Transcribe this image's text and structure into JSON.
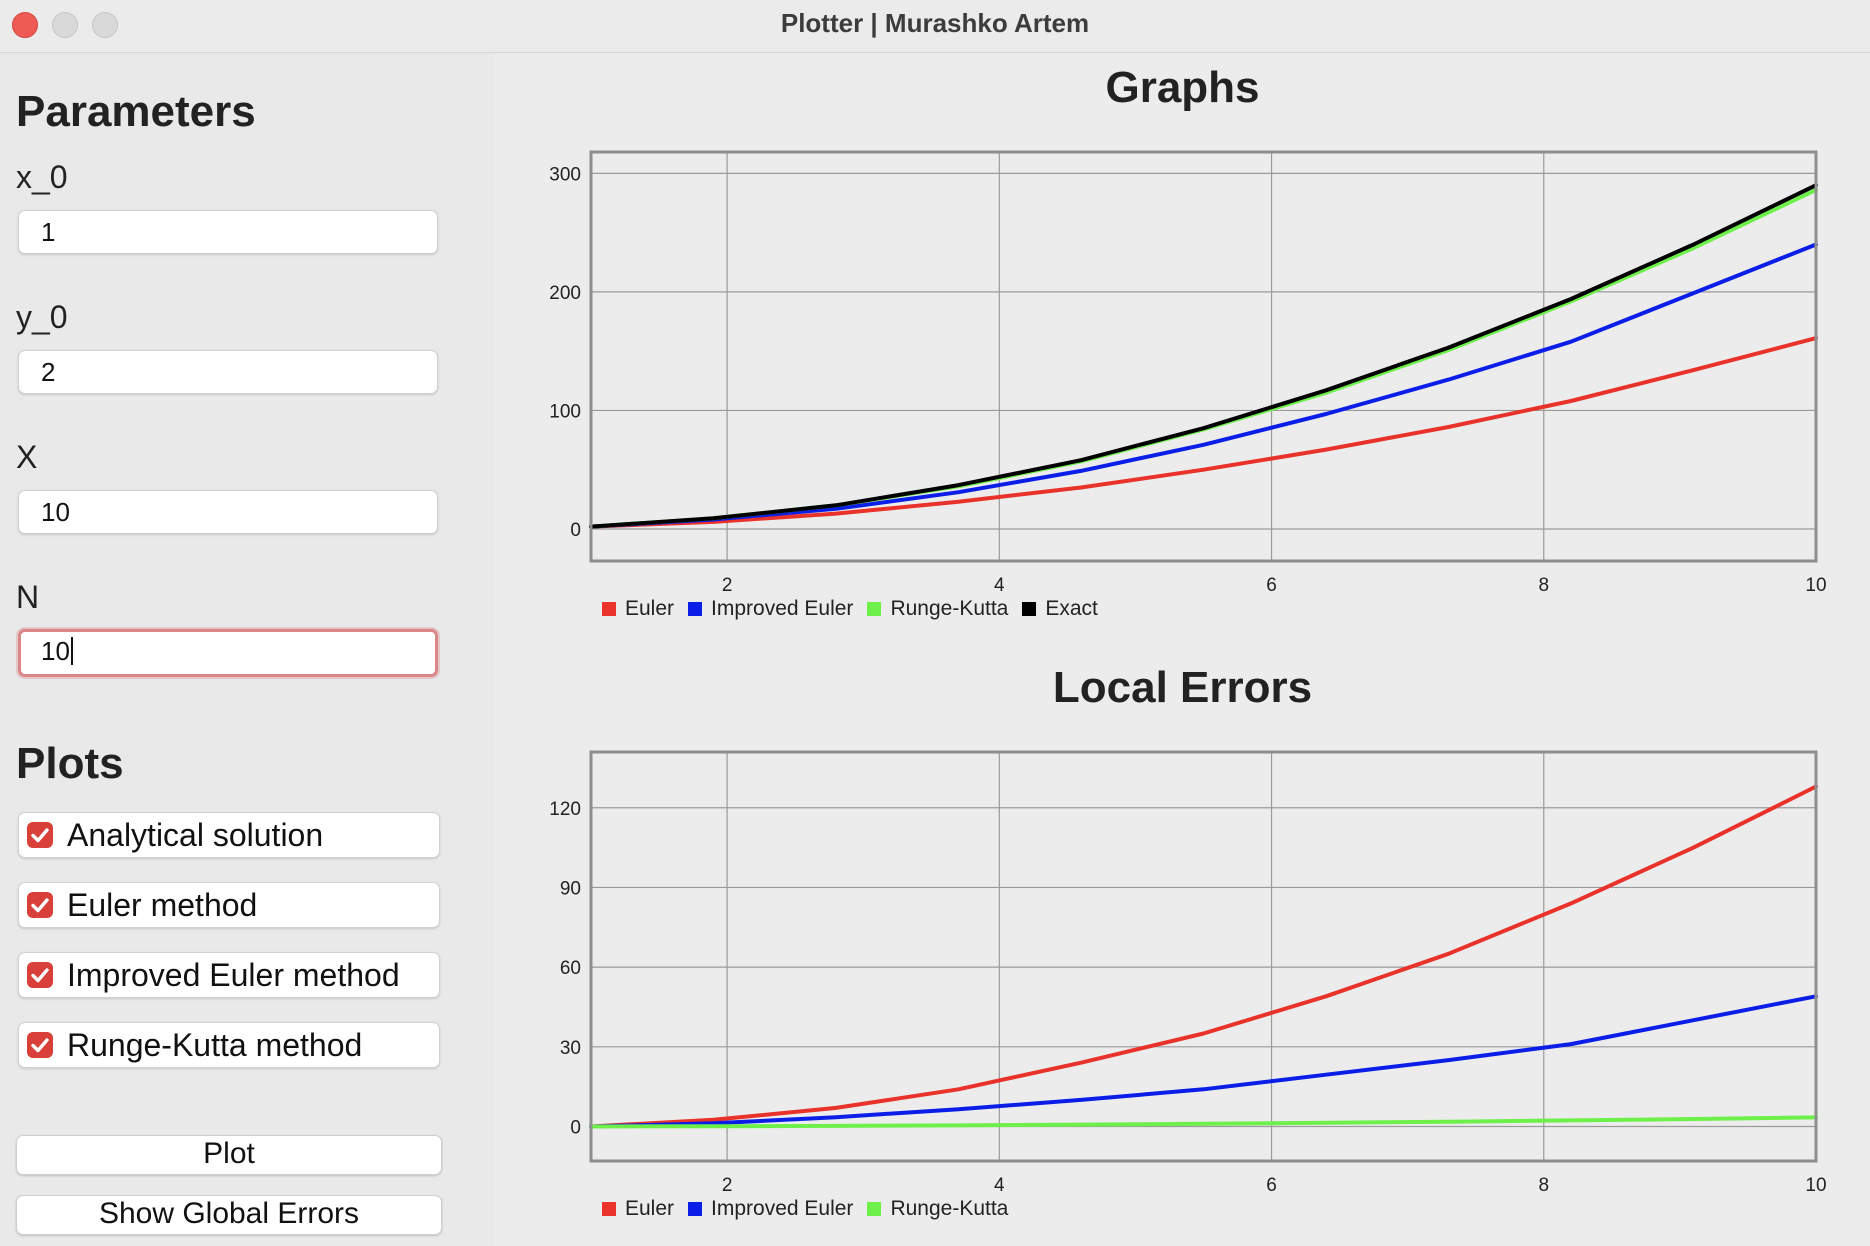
{
  "window": {
    "title": "Plotter | Murashko Artem"
  },
  "parameters": {
    "title": "Parameters",
    "fields": [
      {
        "label": "x_0",
        "value": "1"
      },
      {
        "label": "y_0",
        "value": "2"
      },
      {
        "label": "X",
        "value": "10"
      },
      {
        "label": "N",
        "value": "10"
      }
    ]
  },
  "plots": {
    "title": "Plots",
    "options": [
      {
        "label": "Analytical solution",
        "checked": true
      },
      {
        "label": "Euler method",
        "checked": true
      },
      {
        "label": "Improved Euler method",
        "checked": true
      },
      {
        "label": "Runge-Kutta method",
        "checked": true
      }
    ],
    "plot_button": "Plot",
    "global_errors_button": "Show Global Errors"
  },
  "colors": {
    "euler": "#e8322a",
    "improved_euler": "#0a1ee8",
    "runge_kutta": "#6ef04a",
    "exact": "#000000",
    "checkbox": "#d9403a"
  },
  "chart_data": [
    {
      "type": "line",
      "title": "Graphs",
      "xlim": [
        1,
        10
      ],
      "ylim": [
        -27,
        318
      ],
      "xticks": [
        2,
        4,
        6,
        8,
        10
      ],
      "yticks": [
        0,
        100,
        200,
        300
      ],
      "grid": true,
      "legend_position": "bottom-left",
      "x": [
        1,
        1.9,
        2.8,
        3.7,
        4.6,
        5.5,
        6.4,
        7.3,
        8.2,
        9.1,
        10
      ],
      "series": [
        {
          "name": "Euler",
          "color": "#e8322a",
          "values": [
            2,
            6,
            13,
            23,
            35,
            50,
            67,
            86,
            108,
            134,
            161
          ]
        },
        {
          "name": "Improved Euler",
          "color": "#0a1ee8",
          "values": [
            2,
            8,
            17,
            31,
            49,
            71,
            97,
            126,
            158,
            199,
            240
          ]
        },
        {
          "name": "Runge-Kutta",
          "color": "#6ef04a",
          "values": [
            2,
            9,
            20,
            36,
            57,
            84,
            115,
            151,
            192,
            237,
            286
          ]
        },
        {
          "name": "Exact",
          "color": "#000000",
          "values": [
            2,
            9,
            20,
            37,
            58,
            85,
            117,
            153,
            194,
            240,
            290
          ]
        }
      ]
    },
    {
      "type": "line",
      "title": "Local Errors",
      "xlim": [
        1,
        10
      ],
      "ylim": [
        -13,
        141
      ],
      "xticks": [
        2,
        4,
        6,
        8,
        10
      ],
      "yticks": [
        0,
        30,
        60,
        90,
        120
      ],
      "grid": true,
      "legend_position": "bottom-left",
      "x": [
        1,
        1.9,
        2.8,
        3.7,
        4.6,
        5.5,
        6.4,
        7.3,
        8.2,
        9.1,
        10
      ],
      "series": [
        {
          "name": "Euler",
          "color": "#e8322a",
          "values": [
            0,
            2.5,
            7,
            14,
            24,
            35,
            49,
            65,
            84,
            105,
            128
          ]
        },
        {
          "name": "Improved Euler",
          "color": "#0a1ee8",
          "values": [
            0,
            1.2,
            3.5,
            6.5,
            10,
            14,
            19.5,
            25,
            31,
            40,
            49
          ]
        },
        {
          "name": "Runge-Kutta",
          "color": "#6ef04a",
          "values": [
            0,
            0.1,
            0.2,
            0.4,
            0.7,
            1,
            1.4,
            1.8,
            2.3,
            2.8,
            3.4
          ]
        }
      ]
    }
  ]
}
